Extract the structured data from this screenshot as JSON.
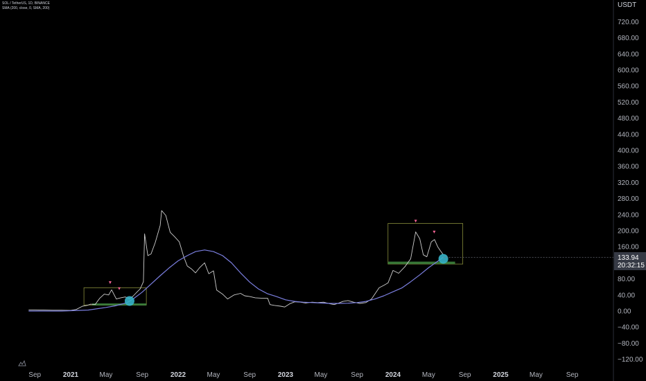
{
  "legend": {
    "symbol_line": "SOL / TetherUS, 1D, BINANCE",
    "indicator_line": "SMA (200, close, 0, SMA, 200)"
  },
  "price_scale": {
    "currency": "USDT",
    "last_price": "133.94",
    "countdown": "20:32:15"
  },
  "watermark_icon": "tradingview-logo-icon",
  "colors": {
    "background": "#000000",
    "price_line": "#cfcfcf",
    "sma_line": "#7b7fe0",
    "box_border": "#8a8f3c",
    "support_zone": "#3f8a3f",
    "circle_marker": "#36b4c9",
    "arrow_marker": "#f06292",
    "last_price_badge": "#363a45"
  },
  "chart_data": {
    "type": "line",
    "title": "",
    "xlabel": "",
    "ylabel": "",
    "ylim": [
      -130,
      760
    ],
    "y_ticks": [
      "720.00",
      "680.00",
      "640.00",
      "600.00",
      "560.00",
      "520.00",
      "480.00",
      "440.00",
      "400.00",
      "360.00",
      "320.00",
      "280.00",
      "240.00",
      "200.00",
      "160.00",
      "120.00",
      "80.00",
      "40.00",
      "0.00",
      "−40.00",
      "−80.00",
      "−120.00"
    ],
    "y_tick_values": [
      720,
      680,
      640,
      600,
      560,
      520,
      480,
      440,
      400,
      360,
      320,
      280,
      240,
      200,
      160,
      120,
      80,
      40,
      0,
      -40,
      -80,
      -120
    ],
    "x_ticks": [
      {
        "label": "Sep",
        "date": "2020-09-01",
        "year": false
      },
      {
        "label": "2021",
        "date": "2021-01-01",
        "year": true
      },
      {
        "label": "May",
        "date": "2021-05-01",
        "year": false
      },
      {
        "label": "Sep",
        "date": "2021-09-01",
        "year": false
      },
      {
        "label": "2022",
        "date": "2022-01-01",
        "year": true
      },
      {
        "label": "May",
        "date": "2022-05-01",
        "year": false
      },
      {
        "label": "Sep",
        "date": "2022-09-01",
        "year": false
      },
      {
        "label": "2023",
        "date": "2023-01-01",
        "year": true
      },
      {
        "label": "May",
        "date": "2023-05-01",
        "year": false
      },
      {
        "label": "Sep",
        "date": "2023-09-01",
        "year": false
      },
      {
        "label": "2024",
        "date": "2024-01-01",
        "year": true
      },
      {
        "label": "May",
        "date": "2024-05-01",
        "year": false
      },
      {
        "label": "Sep",
        "date": "2024-09-01",
        "year": false
      },
      {
        "label": "2025",
        "date": "2025-01-01",
        "year": true
      },
      {
        "label": "May",
        "date": "2025-05-01",
        "year": false
      },
      {
        "label": "Sep",
        "date": "2025-09-01",
        "year": false
      }
    ],
    "series": [
      {
        "values_x": [
          "2020-08-11",
          "2020-09-01",
          "2020-10-01",
          "2020-11-01",
          "2020-12-01",
          "2021-01-01",
          "2021-01-20",
          "2021-02-10",
          "2021-02-25",
          "2021-03-10",
          "2021-03-25",
          "2021-04-10",
          "2021-04-25",
          "2021-05-10",
          "2021-05-20",
          "2021-06-05",
          "2021-06-20",
          "2021-07-05",
          "2021-07-20",
          "2021-08-01",
          "2021-08-15",
          "2021-08-25",
          "2021-09-05",
          "2021-09-09",
          "2021-09-20",
          "2021-10-01",
          "2021-10-15",
          "2021-11-01",
          "2021-11-06",
          "2021-11-20",
          "2021-12-05",
          "2021-12-20",
          "2022-01-05",
          "2022-01-20",
          "2022-02-01",
          "2022-02-15",
          "2022-03-01",
          "2022-03-15",
          "2022-04-01",
          "2022-04-15",
          "2022-05-01",
          "2022-05-12",
          "2022-06-01",
          "2022-06-18",
          "2022-07-10",
          "2022-08-01",
          "2022-08-15",
          "2022-09-01",
          "2022-09-20",
          "2022-10-10",
          "2022-11-01",
          "2022-11-09",
          "2022-11-25",
          "2022-12-15",
          "2022-12-29",
          "2023-01-15",
          "2023-02-01",
          "2023-02-20",
          "2023-03-10",
          "2023-04-01",
          "2023-04-20",
          "2023-05-10",
          "2023-06-01",
          "2023-06-15",
          "2023-07-01",
          "2023-07-15",
          "2023-08-01",
          "2023-08-20",
          "2023-09-10",
          "2023-10-01",
          "2023-10-20",
          "2023-11-01",
          "2023-11-15",
          "2023-12-01",
          "2023-12-15",
          "2024-01-01",
          "2024-01-20",
          "2024-02-10",
          "2024-03-01",
          "2024-03-18",
          "2024-04-01",
          "2024-04-13",
          "2024-04-25",
          "2024-05-10",
          "2024-05-21",
          "2024-06-01",
          "2024-06-10",
          "2024-06-20"
        ],
        "values": [
          3,
          3,
          2.5,
          2,
          2,
          1.5,
          4,
          12,
          14,
          17,
          16,
          32,
          42,
          40,
          53,
          30,
          33,
          35,
          31,
          37,
          48,
          55,
          73,
          192,
          138,
          142,
          170,
          213,
          250,
          238,
          196,
          185,
          172,
          135,
          112,
          105,
          95,
          108,
          120,
          93,
          100,
          52,
          42,
          30,
          40,
          44,
          38,
          36,
          33,
          32,
          32,
          16,
          14,
          12,
          10,
          18,
          23,
          22,
          20,
          22,
          21,
          22,
          18,
          16,
          20,
          24,
          26,
          22,
          19,
          21,
          30,
          43,
          58,
          64,
          70,
          101,
          94,
          110,
          130,
          197,
          180,
          140,
          135,
          172,
          178,
          160,
          150,
          140,
          133.94
        ],
        "name": ""
      },
      {
        "name": "",
        "values_x": [
          "2020-08-11",
          "2020-12-01",
          "2021-03-01",
          "2021-05-01",
          "2021-06-01",
          "2021-07-10",
          "2021-08-01",
          "2021-09-01",
          "2021-10-01",
          "2021-11-01",
          "2021-12-01",
          "2022-01-01",
          "2022-02-01",
          "2022-03-01",
          "2022-04-01",
          "2022-05-01",
          "2022-06-01",
          "2022-07-01",
          "2022-08-01",
          "2022-09-01",
          "2022-10-01",
          "2022-11-01",
          "2022-12-01",
          "2023-01-01",
          "2023-02-01",
          "2023-03-01",
          "2023-04-01",
          "2023-05-01",
          "2023-06-01",
          "2023-07-01",
          "2023-08-01",
          "2023-09-01",
          "2023-10-01",
          "2023-11-01",
          "2023-12-01",
          "2024-01-01",
          "2024-02-01",
          "2024-03-01",
          "2024-04-01",
          "2024-05-01",
          "2024-06-01",
          "2024-06-20"
        ],
        "values": [
          0,
          0,
          2.4,
          9,
          13,
          20.5,
          30,
          47,
          67,
          88,
          107,
          125,
          138,
          148,
          152,
          148,
          138,
          120,
          95,
          72,
          55,
          43,
          36,
          28,
          24,
          22,
          21,
          20,
          19,
          19,
          19.5,
          21,
          24,
          30,
          38,
          48,
          58,
          73,
          90,
          108,
          124,
          133.94
        ]
      }
    ],
    "annotations": {
      "boxes": [
        {
          "x0": "2021-02-15",
          "x1": "2021-09-15",
          "y_top": 58,
          "y_bottom": 15
        },
        {
          "x0": "2023-12-15",
          "x1": "2024-08-25",
          "y_top": 218,
          "y_bottom": 117
        }
      ],
      "support_zones": [
        {
          "x0": "2021-03-15",
          "x1": "2021-09-15",
          "y_top": 19,
          "y_bottom": 15
        },
        {
          "x0": "2023-12-15",
          "x1": "2024-07-30",
          "y_top": 123,
          "y_bottom": 117
        }
      ],
      "circles": [
        {
          "x": "2021-07-20",
          "y": 25
        },
        {
          "x": "2024-06-20",
          "y": 130
        }
      ],
      "arrows": [
        {
          "x": "2021-05-15",
          "y": 62
        },
        {
          "x": "2021-06-15",
          "y": 47
        },
        {
          "x": "2024-03-18",
          "y": 215
        },
        {
          "x": "2024-05-20",
          "y": 188
        }
      ]
    }
  }
}
